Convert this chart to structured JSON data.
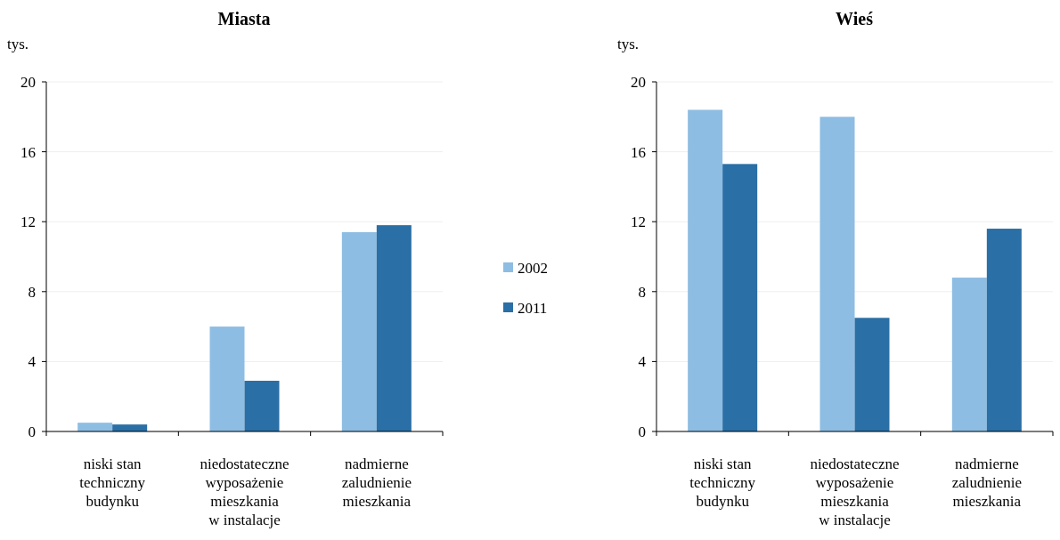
{
  "chart_data": [
    {
      "type": "bar",
      "title": "Miasta",
      "ylabel": "tys.",
      "categories": [
        "niski stan\ntechniczny\nbudynku",
        "niedostateczne\nwyposażenie\nmieszkania\nw instalacje",
        "nadmierne\nzaludnienie\nmieszkania"
      ],
      "series": [
        {
          "name": "2002",
          "color": "#8dbde3",
          "values": [
            0.5,
            6.0,
            11.4
          ]
        },
        {
          "name": "2011",
          "color": "#2a6fa5",
          "values": [
            0.4,
            2.9,
            11.8
          ]
        }
      ],
      "ylim": [
        0,
        20
      ],
      "yticks": [
        0,
        4,
        8,
        12,
        16,
        20
      ],
      "grid": "y",
      "legend": "right"
    },
    {
      "type": "bar",
      "title": "Wieś",
      "ylabel": "tys.",
      "categories": [
        "niski stan\ntechniczny\nbudynku",
        "niedostateczne\nwyposażenie\nmieszkania\nw instalacje",
        "nadmierne\nzaludnienie\nmieszkania"
      ],
      "series": [
        {
          "color": "#8dbde3",
          "values": [
            18.4,
            18.0,
            8.8
          ]
        },
        {
          "color": "#2a6fa5",
          "values": [
            15.3,
            6.5,
            11.6
          ]
        }
      ],
      "ylim": [
        0,
        20
      ],
      "yticks": [
        0,
        4,
        8,
        12,
        16,
        20
      ],
      "grid": "y"
    }
  ]
}
